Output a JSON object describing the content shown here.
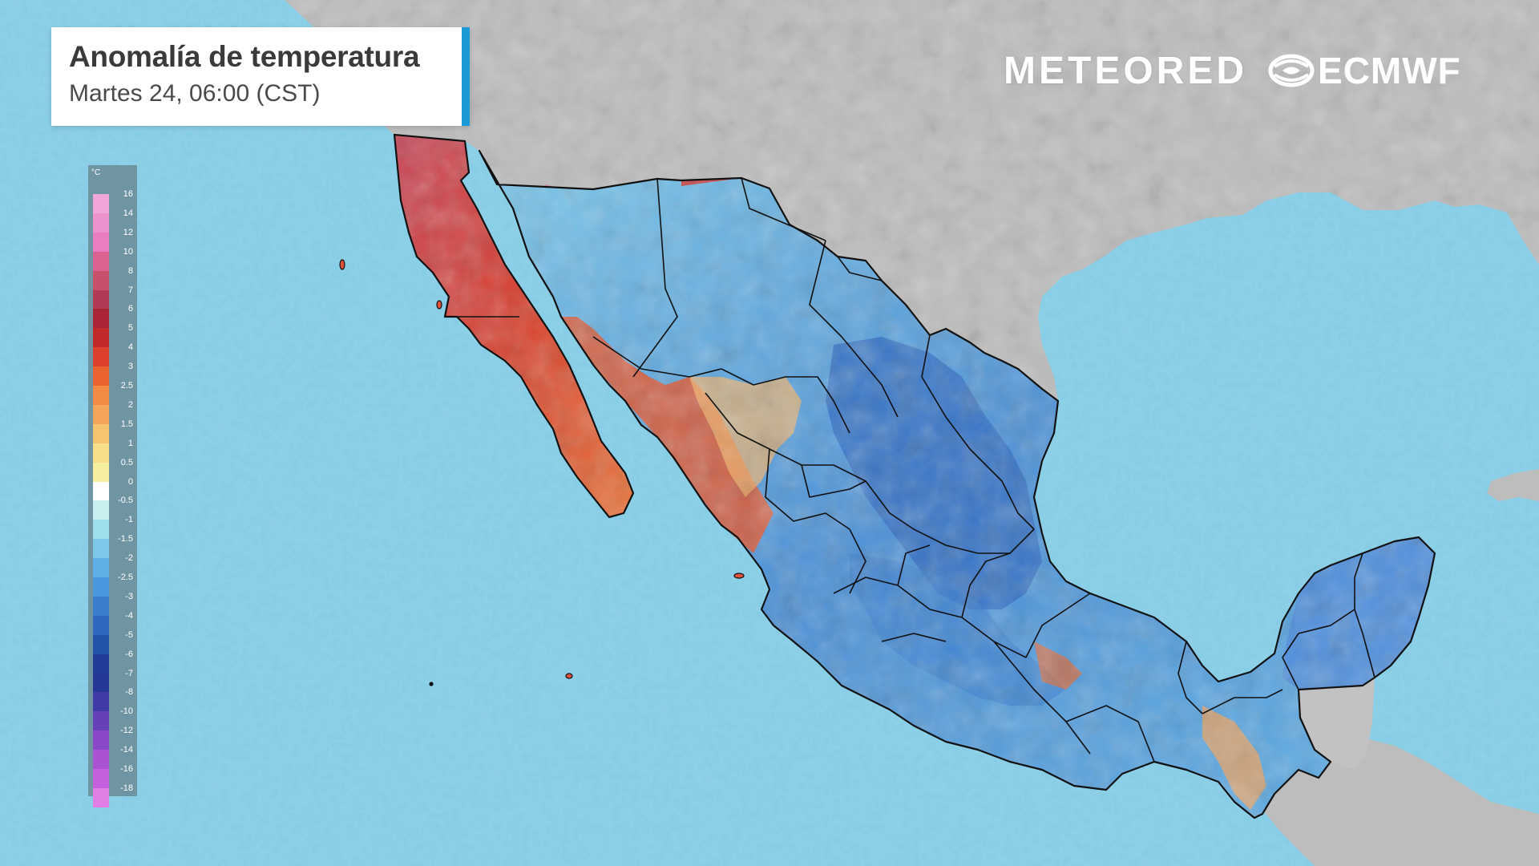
{
  "header": {
    "title": "Anomalía de temperatura",
    "subtitle": "Martes 24, 06:00 (CST)"
  },
  "logos": {
    "meteored": "METEORED",
    "ecmwf": "ECMWF"
  },
  "legend": {
    "unit": "°C",
    "ticks": [
      "16",
      "14",
      "12",
      "10",
      "8",
      "7",
      "6",
      "5",
      "4",
      "3",
      "2.5",
      "2",
      "1.5",
      "1",
      "0.5",
      "0",
      "-0.5",
      "-1",
      "-1.5",
      "-2",
      "-2.5",
      "-3",
      "-4",
      "-5",
      "-6",
      "-7",
      "-8",
      "-10",
      "-12",
      "-14",
      "-16",
      "-18"
    ],
    "colors": [
      "#f0a6d6",
      "#ee92cd",
      "#e87dc0",
      "#dc6391",
      "#c9506a",
      "#b23a55",
      "#a82436",
      "#c22a2a",
      "#dc3f2c",
      "#ea6330",
      "#f28b43",
      "#f5a55a",
      "#f6c46e",
      "#f8dd8a",
      "#f6ef9f",
      "#ffffff",
      "#c9f0f0",
      "#9fe0ec",
      "#7cc9ea",
      "#5fb0e6",
      "#4a96dc",
      "#3a7fcf",
      "#2f68bf",
      "#2253ab",
      "#1f3d97",
      "#263896",
      "#3f3aa6",
      "#6640b8",
      "#8a47c8",
      "#a952d2",
      "#c55fdb",
      "#e07ee6"
    ]
  },
  "colors": {
    "ocean": "#87cde6",
    "land": "#b9b9b9",
    "accent": "#1a9ad6"
  }
}
